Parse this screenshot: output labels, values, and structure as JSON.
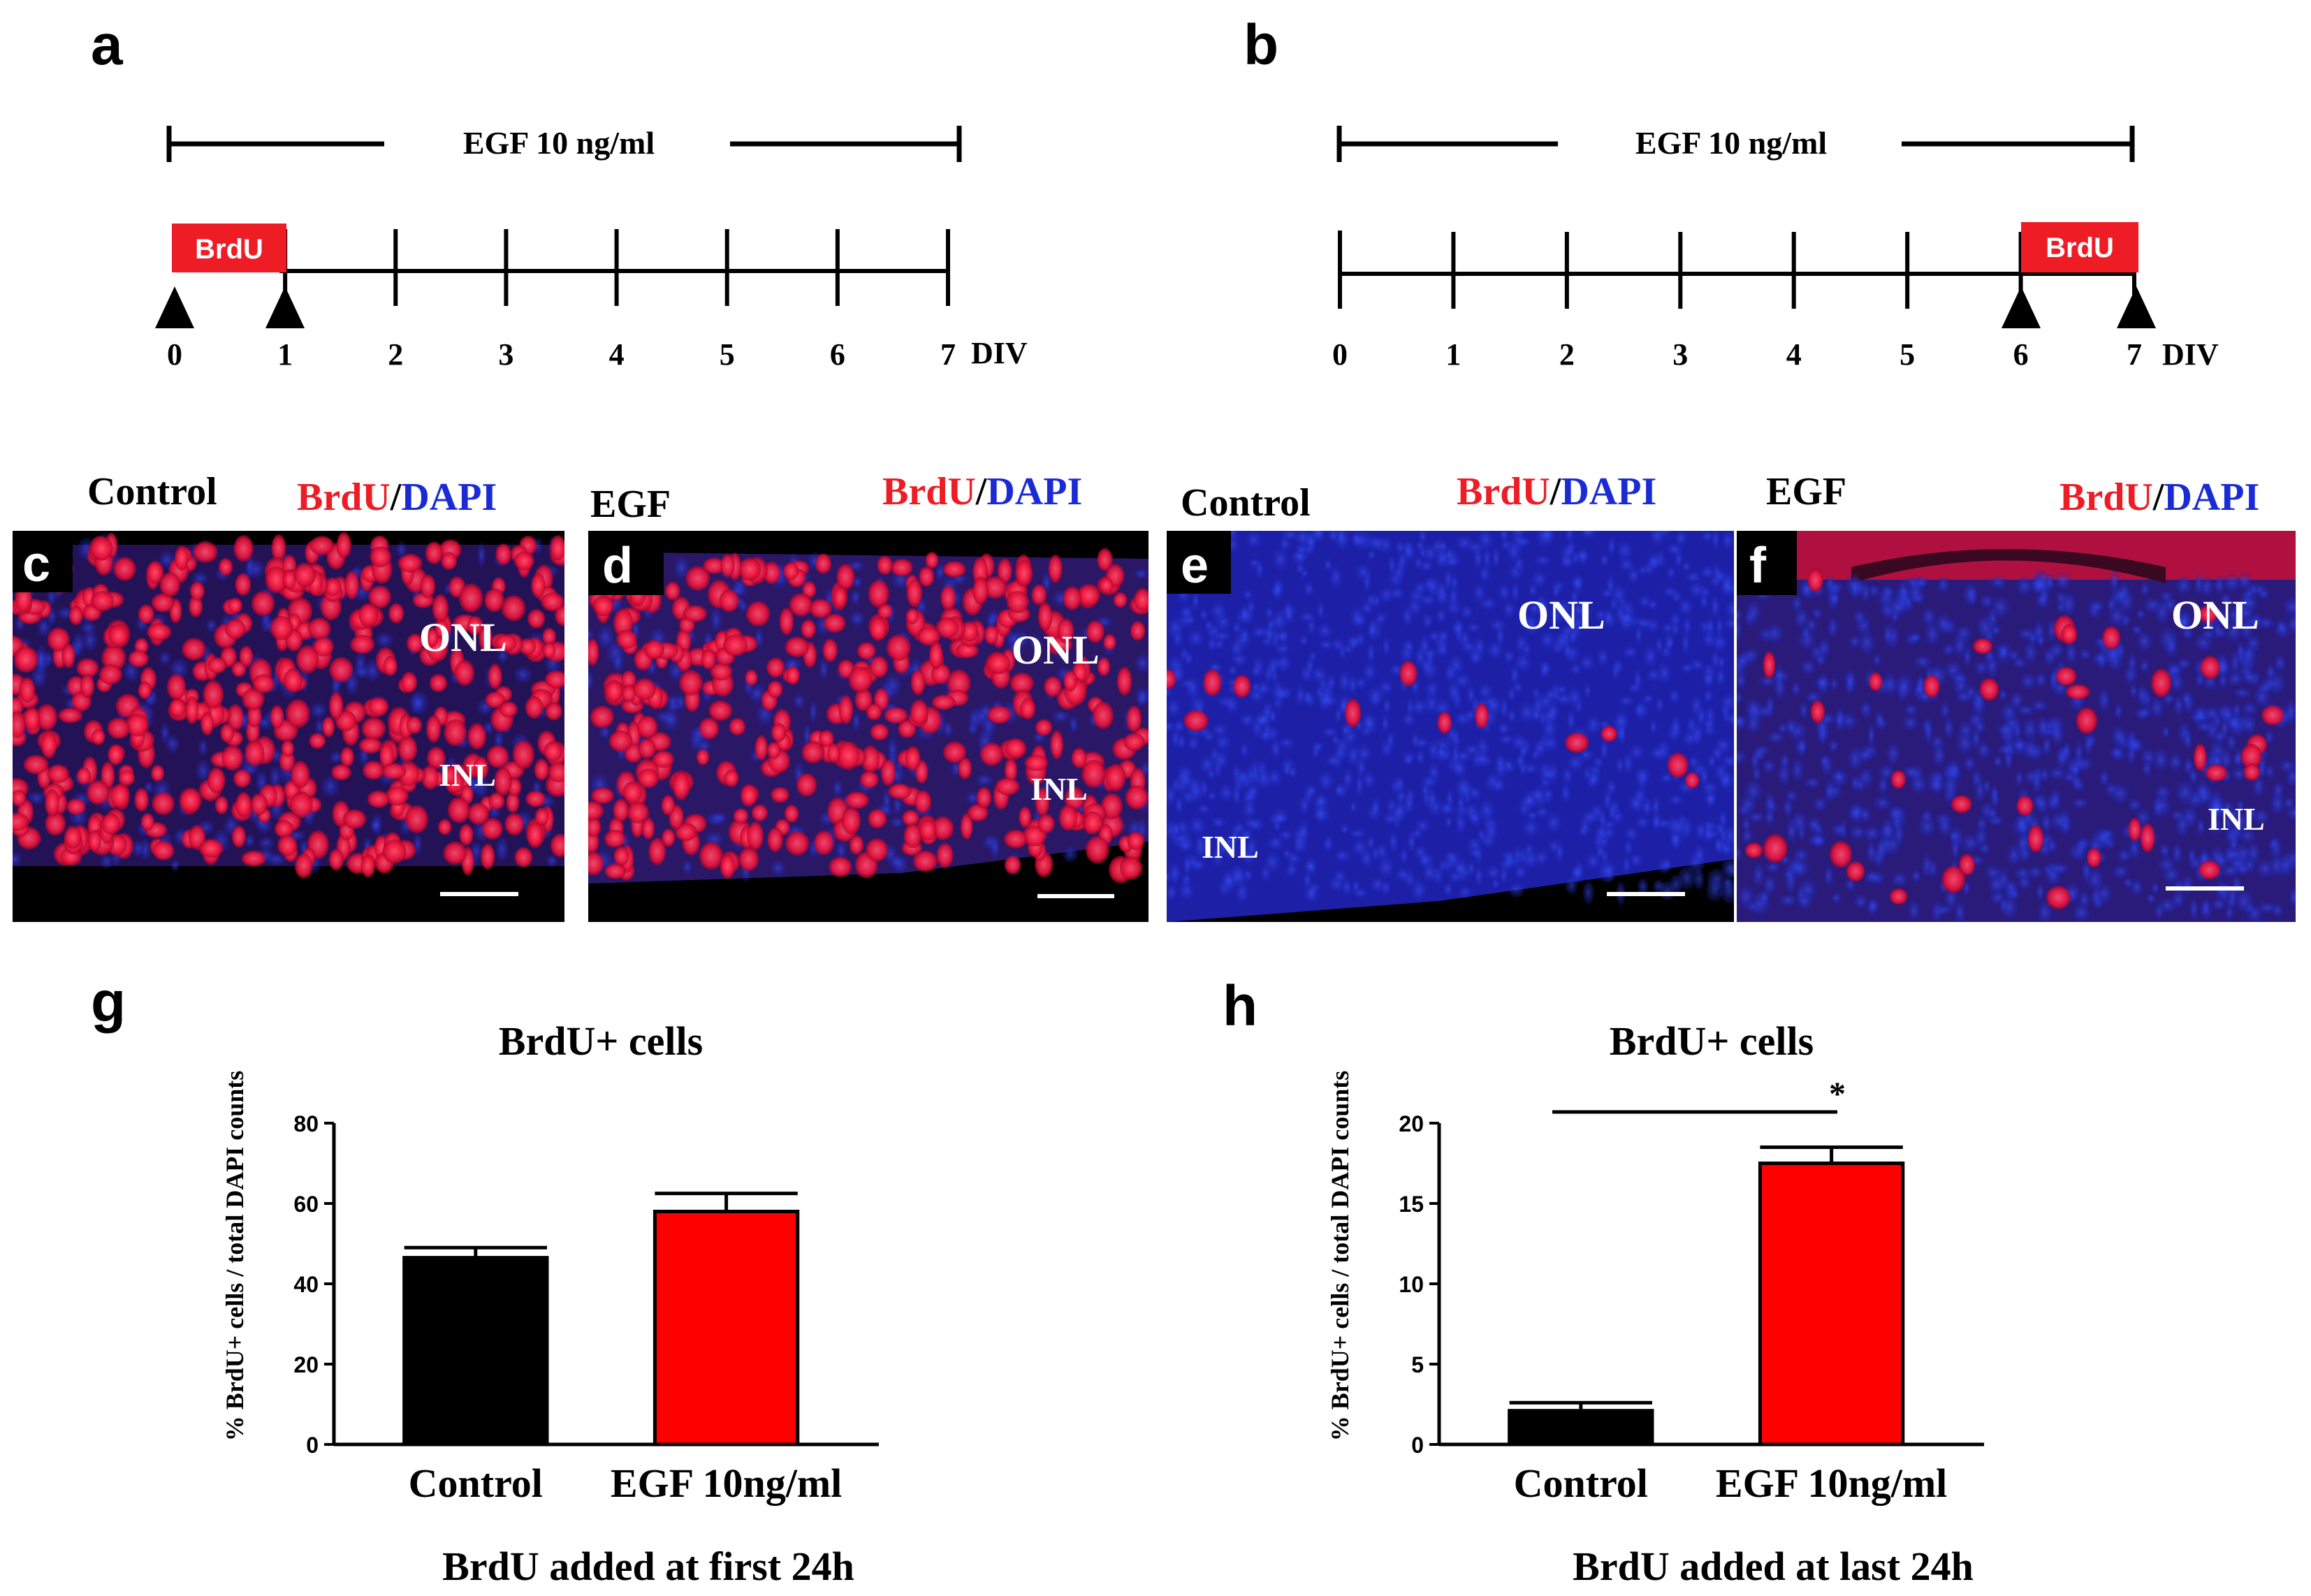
{
  "panels": {
    "a": {
      "letter": "a",
      "egf_label": "EGF 10 ng/ml",
      "brdu_box": "BrdU",
      "ticks": [
        "0",
        "1",
        "2",
        "3",
        "4",
        "5",
        "6",
        "7"
      ],
      "unit": "DIV",
      "brdu_interval": [
        0,
        1
      ]
    },
    "b": {
      "letter": "b",
      "egf_label": "EGF 10 ng/ml",
      "brdu_box": "BrdU",
      "ticks": [
        "0",
        "1",
        "2",
        "3",
        "4",
        "5",
        "6",
        "7"
      ],
      "unit": "DIV",
      "brdu_interval": [
        6,
        7
      ]
    },
    "c": {
      "letter": "c",
      "condition": "Control",
      "stain_red": "BrdU",
      "slash": "/",
      "stain_blue": "DAPI",
      "layer_top": "ONL",
      "layer_bottom": "INL"
    },
    "d": {
      "letter": "d",
      "condition": "EGF",
      "stain_red": "BrdU",
      "slash": "/",
      "stain_blue": "DAPI",
      "layer_top": "ONL",
      "layer_bottom": "INL"
    },
    "e": {
      "letter": "e",
      "condition": "Control",
      "stain_red": "BrdU",
      "slash": "/",
      "stain_blue": "DAPI",
      "layer_top": "ONL",
      "layer_bottom": "INL"
    },
    "f": {
      "letter": "f",
      "condition": "EGF",
      "stain_red": "BrdU",
      "slash": "/",
      "stain_blue": "DAPI",
      "layer_top": "ONL",
      "layer_bottom": "INL"
    },
    "g": {
      "letter": "g",
      "caption": "BrdU added at first 24h"
    },
    "h": {
      "letter": "h",
      "caption": "BrdU added at last 24h",
      "significance": "*"
    }
  },
  "colors": {
    "control_bar": "#000000",
    "egf_bar": "#ff0000",
    "brdu_text": "#ee1c25",
    "dapi_text": "#1a2bd6"
  },
  "chart_data": [
    {
      "panel": "g",
      "type": "bar",
      "title": "BrdU+ cells",
      "ylabel": "% BrdU+ cells / total DAPI counts",
      "xlabel": "",
      "categories": [
        "Control",
        "EGF 10ng/ml"
      ],
      "values": [
        46.5,
        58
      ],
      "errors": [
        2.5,
        4.5
      ],
      "ylim": [
        0,
        80
      ],
      "yticks": [
        "0",
        "20",
        "40",
        "60",
        "80"
      ],
      "grid": false
    },
    {
      "panel": "h",
      "type": "bar",
      "title": "BrdU+ cells",
      "ylabel": "% BrdU+ cells / total DAPI counts",
      "xlabel": "",
      "categories": [
        "Control",
        "EGF 10ng/ml"
      ],
      "values": [
        2.1,
        17.5
      ],
      "errors": [
        0.5,
        1.0
      ],
      "ylim": [
        0,
        20
      ],
      "yticks": [
        "0",
        "5",
        "10",
        "15",
        "20"
      ],
      "grid": false
    }
  ]
}
